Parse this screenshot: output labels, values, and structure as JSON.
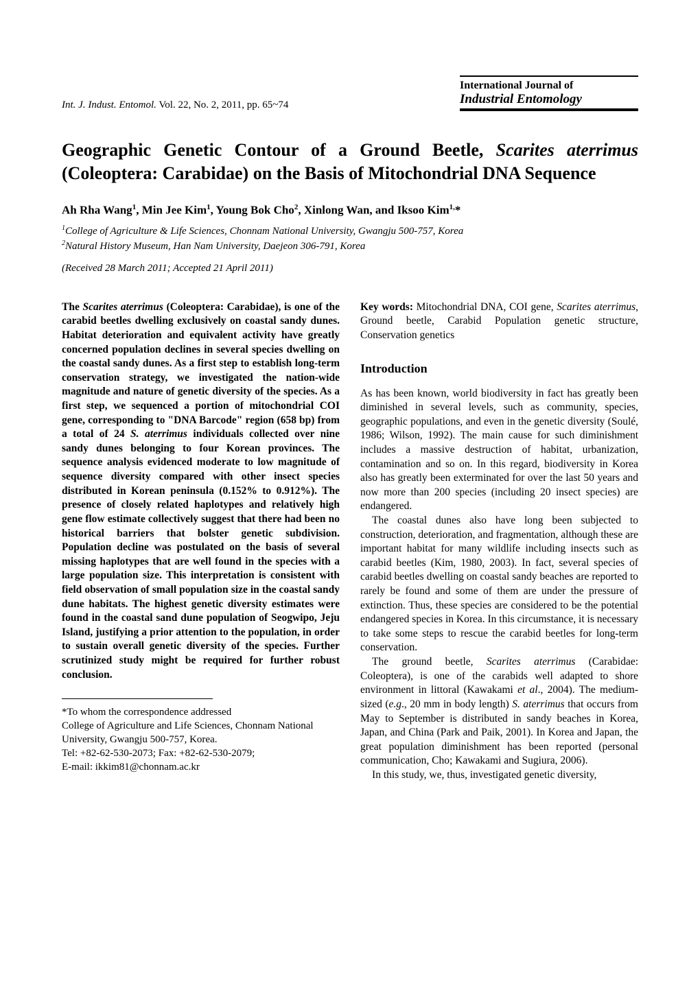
{
  "header": {
    "journal_ref_prefix": "Int. J. Indust. Entomol.",
    "journal_ref_suffix": " Vol. 22, No. 2, 2011,  pp. 65~74",
    "journal_name_line1": "International Journal of",
    "journal_name_line2": "Industrial Entomology"
  },
  "title": {
    "part1": "Geographic Genetic Contour of a Ground Beetle, ",
    "sci": "Scarites aterrimus",
    "part2": " (Coleoptera: Carabidae) on the Basis of Mitochondrial DNA Sequence"
  },
  "authors": {
    "a1": "Ah Rha Wang",
    "s1": "1",
    "a2": ", Min Jee Kim",
    "s2": "1",
    "a3": ", Young Bok Cho",
    "s3": "2",
    "a4": ", Xinlong Wan, and Iksoo Kim",
    "s4": "1,",
    "star": "*"
  },
  "affiliations": {
    "n1": "1",
    "t1": "College of Agriculture & Life Sciences, Chonnam National University, Gwangju 500-757, Korea",
    "n2": "2",
    "t2": "Natural History Museum, Han Nam University, Daejeon 306-791, Korea"
  },
  "received": "(Received 28 March 2011; Accepted 21 April 2011)",
  "abstract": {
    "p1a": "The ",
    "p1sci": "Scarites aterrimus",
    "p1b": " (Coleoptera: Carabidae), is one of the carabid beetles dwelling exclusively on coastal sandy dunes. Habitat deterioration and equivalent activity have greatly concerned population declines in several species dwelling on the coastal sandy dunes. As a first step to establish long-term conservation strategy, we investigated the nation-wide magnitude and nature of genetic diversity of the species. As a first step, we sequenced a portion of mitochondrial COI gene, corresponding to \"DNA Barcode\" region (658 bp) from a total of 24 ",
    "p1sci2": "S. aterrimus",
    "p1c": " individuals collected over nine sandy dunes belonging to four Korean provinces. The sequence analysis evidenced moderate to low magnitude of sequence diversity compared with other insect species distributed in Korean peninsula (0.152% to 0.912%). The presence of closely related haplotypes and relatively high gene flow estimate collectively suggest that there had been no historical barriers that bolster genetic subdivision. Population decline was postulated on the basis of several missing haplotypes that are well found in the species with a large population size. This interpretation is consistent with field observation of small population size in the coastal sandy dune habitats. The highest genetic diversity estimates were found in the coastal sand dune population of Seogwipo, Jeju Island, justifying a prior attention to the population, in order to sustain overall genetic diversity of the species. Further scrutinized study might be required for further robust conclusion."
  },
  "keywords": {
    "label": "Key words:",
    "t1": " Mitochondrial DNA, COI gene, ",
    "sci": "Scarites aterrimus",
    "t2": ", Ground beetle, Carabid Population genetic structure, Conservation genetics"
  },
  "intro_heading": "Introduction",
  "intro": {
    "p1": "As has been known, world biodiversity in fact has greatly been diminished in several levels, such as community, species, geographic populations, and even in the genetic diversity (Soulé, 1986; Wilson, 1992). The main cause for such diminishment includes a massive destruction of habitat, urbanization, contamination and so on. In this regard, biodiversity in Korea also has greatly been exterminated for over the last 50 years and now more than 200 species (including 20 insect species) are endangered.",
    "p2": "The coastal dunes also have long been subjected to construction, deterioration, and fragmentation, although these are important habitat for many wildlife including insects such as carabid beetles (Kim, 1980, 2003). In fact, several species of carabid beetles dwelling on coastal sandy beaches are reported to rarely be found and some of them are under the pressure of extinction. Thus, these species are considered to be the potential endangered species in Korea. In this circumstance, it is necessary to take some steps to rescue the carabid beetles for long-term conservation.",
    "p3a": "The ground beetle, ",
    "p3sci1": "Scarites aterrimus",
    "p3b": " (Carabidae: Coleoptera), is one of the carabids well adapted to shore environment in littoral (Kawakami ",
    "p3etal": "et al",
    "p3c": "., 2004). The medium-sized (",
    "p3eg": "e.g",
    "p3d": "., 20 mm in body length) ",
    "p3sci2": "S. aterrimus",
    "p3e": " that occurs from May to September is distributed in sandy beaches in Korea, Japan, and China (Park and Paik, 2001). In Korea and Japan, the great population diminishment has been reported (personal communication, Cho; Kawakami and Sugiura, 2006).",
    "p4": "In this study, we, thus, investigated genetic diversity,"
  },
  "footnote": {
    "l1": "*To whom the correspondence addressed",
    "l2": "College of Agriculture and Life Sciences, Chonnam National University, Gwangju 500-757, Korea.",
    "l3": "Tel: +82-62-530-2073; Fax: +82-62-530-2079;",
    "l4": "E-mail: ikkim81@chonnam.ac.kr"
  }
}
